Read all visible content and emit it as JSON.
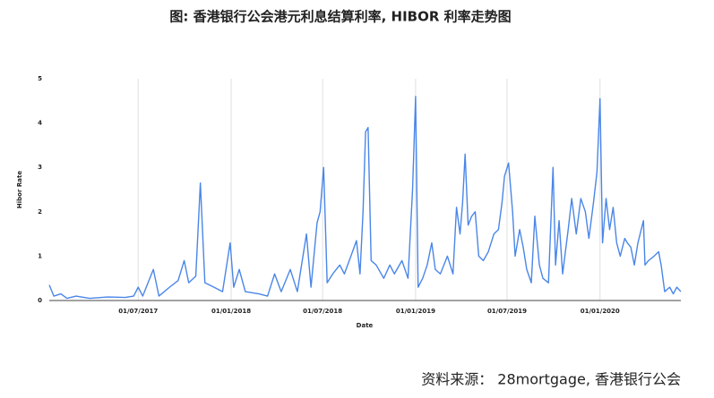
{
  "chart_data": {
    "type": "line",
    "title": "图: 香港银行公会港元利息结算利率, HIBOR 利率走势图",
    "x_label": "Date",
    "y_label": "Hibor Rate",
    "source": "资料来源： 28mortgage,  香港银行公会",
    "x": [
      "06/01/2017",
      "15/01/2017",
      "29/01/2017",
      "10/02/2017",
      "28/02/2017",
      "27/03/2017",
      "01/05/2017",
      "05/06/2017",
      "22/06/2017",
      "01/07/2017",
      "10/07/2017",
      "31/07/2017",
      "11/08/2017",
      "01/09/2017",
      "18/09/2017",
      "30/09/2017",
      "09/10/2017",
      "23/10/2017",
      "01/11/2017",
      "10/11/2017",
      "28/11/2017",
      "15/12/2017",
      "30/12/2017",
      "06/01/2018",
      "17/01/2018",
      "29/01/2018",
      "25/02/2018",
      "14/03/2018",
      "28/03/2018",
      "10/04/2018",
      "28/04/2018",
      "12/05/2018",
      "30/05/2018",
      "08/06/2018",
      "20/06/2018",
      "26/06/2018",
      "03/07/2018",
      "10/07/2018",
      "21/07/2018",
      "04/08/2018",
      "13/08/2018",
      "26/08/2018",
      "06/09/2018",
      "13/09/2018",
      "19/09/2018",
      "24/09/2018",
      "29/09/2018",
      "05/10/2018",
      "15/10/2018",
      "30/10/2018",
      "11/11/2018",
      "20/11/2018",
      "05/12/2018",
      "17/12/2018",
      "26/12/2018",
      "01/01/2019",
      "06/01/2019",
      "15/01/2019",
      "24/01/2019",
      "02/02/2019",
      "09/02/2019",
      "19/02/2019",
      "05/03/2019",
      "16/03/2019",
      "23/03/2019",
      "30/03/2019",
      "04/04/2019",
      "09/04/2019",
      "15/04/2019",
      "22/04/2019",
      "29/04/2019",
      "06/05/2019",
      "15/05/2019",
      "25/05/2019",
      "05/06/2019",
      "14/06/2019",
      "21/06/2019",
      "26/06/2019",
      "04/07/2019",
      "12/07/2019",
      "17/07/2019",
      "26/07/2019",
      "02/08/2019",
      "09/08/2019",
      "18/08/2019",
      "25/08/2019",
      "03/09/2019",
      "10/09/2019",
      "21/09/2019",
      "30/09/2019",
      "05/10/2019",
      "12/10/2019",
      "19/10/2019",
      "30/10/2019",
      "06/11/2019",
      "15/11/2019",
      "24/11/2019",
      "03/12/2019",
      "10/12/2019",
      "19/12/2019",
      "26/12/2019",
      "01/01/2020",
      "06/01/2020",
      "13/01/2020",
      "20/01/2020",
      "27/01/2020",
      "03/02/2020",
      "10/02/2020",
      "19/02/2020",
      "24/02/2020",
      "02/03/2020",
      "09/03/2020",
      "16/03/2020",
      "27/03/2020",
      "30/03/2020",
      "06/04/2020",
      "17/04/2020",
      "26/04/2020",
      "01/05/2020",
      "08/05/2020",
      "18/05/2020",
      "25/05/2020",
      "01/06/2020",
      "09/06/2020"
    ],
    "series": [
      {
        "name": "Hibor Rate",
        "color": "#4a86e8",
        "values": [
          0.35,
          0.1,
          0.15,
          0.05,
          0.1,
          0.05,
          0.08,
          0.07,
          0.1,
          0.3,
          0.1,
          0.7,
          0.1,
          0.3,
          0.45,
          0.9,
          0.4,
          0.55,
          2.65,
          0.4,
          0.3,
          0.2,
          1.3,
          0.3,
          0.7,
          0.2,
          0.15,
          0.1,
          0.6,
          0.2,
          0.7,
          0.2,
          1.5,
          0.3,
          1.75,
          2.0,
          3.0,
          0.4,
          0.6,
          0.8,
          0.6,
          1.0,
          1.35,
          0.6,
          2.0,
          3.8,
          3.9,
          0.9,
          0.8,
          0.5,
          0.8,
          0.6,
          0.9,
          0.5,
          2.5,
          4.6,
          0.3,
          0.5,
          0.8,
          1.3,
          0.7,
          0.6,
          1.0,
          0.6,
          2.1,
          1.5,
          2.2,
          3.3,
          1.7,
          1.9,
          2.0,
          1.0,
          0.9,
          1.1,
          1.5,
          1.6,
          2.2,
          2.8,
          3.1,
          2.0,
          1.0,
          1.6,
          1.2,
          0.7,
          0.4,
          1.9,
          0.8,
          0.5,
          0.4,
          3.0,
          0.8,
          1.8,
          0.6,
          1.6,
          2.3,
          1.5,
          2.3,
          2.0,
          1.4,
          2.2,
          2.9,
          4.55,
          1.3,
          2.3,
          1.6,
          2.1,
          1.3,
          1.0,
          1.4,
          1.3,
          1.2,
          0.8,
          1.3,
          1.8,
          0.8,
          0.9,
          1.0,
          1.1,
          0.8,
          0.2,
          0.3,
          0.15,
          0.3,
          0.2
        ]
      }
    ],
    "xlim": [
      "06/01/2017",
      "09/06/2020"
    ],
    "xticks": [
      "01/07/2017",
      "01/01/2018",
      "01/07/2018",
      "01/01/2019",
      "01/07/2019",
      "01/01/2020"
    ],
    "ylim": [
      0,
      5
    ],
    "yticks": [
      0,
      1,
      2,
      3,
      4,
      5
    ],
    "grid": "x"
  }
}
